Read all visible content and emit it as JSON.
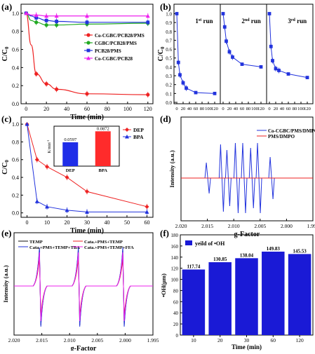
{
  "chart_data": [
    {
      "panel": "(a)",
      "type": "line",
      "xlabel": "Time (min)",
      "ylabel": "C/C0",
      "xticks": [
        "0",
        "20",
        "40",
        "60",
        "80",
        "100",
        "120"
      ],
      "yticks": [
        "0.0",
        "0.2",
        "0.4",
        "0.6",
        "0.8",
        "1.0"
      ],
      "xlim": [
        -5,
        125
      ],
      "ylim": [
        0,
        1.1
      ],
      "x": [
        0,
        5,
        10,
        20,
        30,
        60,
        120
      ],
      "series": [
        {
          "name": "Co-CGBC/PCB28/PMS",
          "color": "#ee2222",
          "values": [
            1.0,
            0.65,
            0.33,
            0.22,
            0.16,
            0.11,
            0.1
          ]
        },
        {
          "name": "CGBC/PCB28/PMS",
          "color": "#22aa22",
          "values": [
            1.0,
            0.92,
            0.9,
            0.87,
            0.87,
            0.88,
            0.89
          ]
        },
        {
          "name": "PCB28/PMS",
          "color": "#2233dd",
          "values": [
            1.0,
            0.97,
            0.95,
            0.92,
            0.91,
            0.9,
            0.9
          ]
        },
        {
          "name": "Co-CGBC/PCB28",
          "color": "#ee22ee",
          "values": [
            1.0,
            0.98,
            0.98,
            0.97,
            0.97,
            0.97,
            0.97
          ]
        }
      ]
    },
    {
      "panel": "(b)",
      "type": "line",
      "ylabel": "C/C0",
      "yticks": [
        "0.0",
        "0.1",
        "0.2",
        "0.3",
        "0.4",
        "0.5",
        "0.6",
        "0.7",
        "0.8",
        "0.9",
        "1.0"
      ],
      "xticks": [
        "0",
        "20",
        "40",
        "60",
        "80",
        "100",
        "120"
      ],
      "xticks_last_run": [
        "0",
        "20",
        "40",
        "60",
        "80",
        "100",
        "120"
      ],
      "runs": [
        {
          "label": "1st run",
          "x": [
            0,
            5,
            10,
            20,
            30,
            60,
            120
          ],
          "y": [
            1.0,
            0.45,
            0.31,
            0.22,
            0.16,
            0.11,
            0.1
          ]
        },
        {
          "label": "2nd run",
          "x": [
            0,
            5,
            10,
            20,
            30,
            60,
            120
          ],
          "y": [
            1.0,
            0.85,
            0.69,
            0.57,
            0.51,
            0.43,
            0.4
          ]
        },
        {
          "label": "3rd run",
          "x": [
            0,
            5,
            10,
            20,
            30,
            60,
            120
          ],
          "y": [
            1.0,
            0.63,
            0.47,
            0.38,
            0.36,
            0.32,
            0.28
          ]
        }
      ],
      "ylim": [
        0,
        1.1
      ],
      "color": "#2233dd"
    },
    {
      "panel": "(c)",
      "type": "line",
      "xlabel": "Time (min)",
      "ylabel": "C/C0",
      "xticks": [
        "0",
        "10",
        "20",
        "30",
        "40",
        "50",
        "60"
      ],
      "yticks": [
        "0.0",
        "0.2",
        "0.4",
        "0.6",
        "0.8",
        "1.0"
      ],
      "xlim": [
        -3,
        63
      ],
      "ylim": [
        -0.05,
        1.08
      ],
      "x": [
        0,
        5,
        10,
        20,
        30,
        60
      ],
      "series": [
        {
          "name": "DEP",
          "color": "#ee2222",
          "values": [
            1.0,
            0.6,
            0.52,
            0.4,
            0.24,
            0.07
          ]
        },
        {
          "name": "BPA",
          "color": "#2233dd",
          "values": [
            1.0,
            0.13,
            0.07,
            0.03,
            0.01,
            0.01
          ]
        }
      ],
      "inset": {
        "type": "bar",
        "ylabel": "K/min-1",
        "categories": [
          "DEP",
          "BPA"
        ],
        "values": [
          0.0597,
          0.0872
        ],
        "labels": [
          "0.0597",
          "0.0872"
        ],
        "colors": [
          "#1f2de8",
          "#ff2b2b"
        ]
      }
    },
    {
      "panel": "(d)",
      "type": "line",
      "xlabel": "g-Factor",
      "ylabel": "Intensity (a.u.)",
      "xticks": [
        "2.020",
        "2.015",
        "2.010",
        "2.005",
        "2.000",
        "1.995"
      ],
      "series": [
        {
          "name": "Co-CGBC/PMS/DMPO",
          "color": "#2233dd"
        },
        {
          "name": "PMS/DMPO",
          "color": "#ee2222"
        }
      ]
    },
    {
      "panel": "(e)",
      "type": "line",
      "xlabel": "g-Factor",
      "ylabel": "Intensity (a.u.)",
      "xticks": [
        "2.020",
        "2.015",
        "2.010",
        "2.005",
        "2.000",
        "1.995"
      ],
      "series": [
        {
          "name": "TEMP",
          "color": "#111111"
        },
        {
          "name": "Cata.+PMS+TEMP",
          "color": "#ee2222"
        },
        {
          "name": "Cata.+PMS+TEMP+TBA",
          "color": "#2233dd"
        },
        {
          "name": "Cata.+PMS+TEMP+FFA",
          "color": "#ee22ee"
        }
      ]
    },
    {
      "panel": "(f)",
      "type": "bar",
      "xlabel": "Time (min)",
      "ylabel": "•OH(μm)",
      "legend": "yeild of •OH",
      "categories": [
        "10",
        "20",
        "30",
        "60",
        "120"
      ],
      "values": [
        117.74,
        130.85,
        138.04,
        149.83,
        145.53
      ],
      "labels": [
        "117.74",
        "130.85",
        "138.04",
        "149.83",
        "145.53"
      ],
      "yticks": [
        "0",
        "20",
        "40",
        "60",
        "80",
        "100",
        "120",
        "140",
        "160",
        "180"
      ],
      "ylim": [
        0,
        180
      ],
      "color": "#1a1ad6"
    }
  ]
}
